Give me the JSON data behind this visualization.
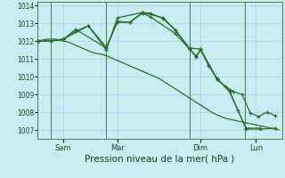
{
  "bg_color": "#c8ecf0",
  "grid_color": "#a8d4da",
  "line_color": "#2a6e2a",
  "xlabel": "Pression niveau de la mer( hPa )",
  "xlabel_fontsize": 7.5,
  "ylim": [
    1006.5,
    1014.2
  ],
  "yticks": [
    1007,
    1008,
    1009,
    1010,
    1011,
    1012,
    1013,
    1014
  ],
  "ytick_labels": [
    "1007",
    "1008",
    "1009",
    "1010",
    "1011",
    "1012",
    "1013",
    "1014"
  ],
  "xlim": [
    -0.05,
    8.8
  ],
  "xtick_labels": [
    "Sam",
    "Mar",
    "Dim",
    "Lun"
  ],
  "xtick_positions": [
    0.9,
    2.85,
    5.85,
    7.85
  ],
  "vline_positions": [
    0.45,
    2.45,
    5.45,
    7.45
  ],
  "series1_x": [
    0.0,
    0.15,
    0.3,
    0.45,
    0.6,
    0.75,
    0.9,
    1.05,
    1.2,
    1.35,
    1.5,
    1.65,
    1.8,
    1.95,
    2.1,
    2.25,
    2.4,
    2.55,
    2.7,
    2.85,
    3.0,
    3.15,
    3.3,
    3.45,
    3.6,
    3.75,
    3.9,
    4.05,
    4.2,
    4.35,
    4.5,
    4.65,
    4.8,
    4.95,
    5.1,
    5.25,
    5.4,
    5.55,
    5.7,
    5.85,
    6.0,
    6.15,
    6.3,
    6.45,
    6.6,
    6.75,
    6.9,
    7.05,
    7.2,
    7.35,
    7.5,
    7.65,
    7.8,
    7.95,
    8.1,
    8.25,
    8.4,
    8.55,
    8.7
  ],
  "series1_y": [
    1012.0,
    1012.05,
    1012.1,
    1012.1,
    1012.1,
    1012.05,
    1012.0,
    1011.95,
    1011.85,
    1011.75,
    1011.65,
    1011.55,
    1011.45,
    1011.35,
    1011.3,
    1011.25,
    1011.2,
    1011.1,
    1011.0,
    1010.9,
    1010.8,
    1010.7,
    1010.6,
    1010.5,
    1010.4,
    1010.3,
    1010.2,
    1010.1,
    1010.0,
    1009.9,
    1009.75,
    1009.6,
    1009.45,
    1009.3,
    1009.15,
    1009.0,
    1008.85,
    1008.7,
    1008.55,
    1008.4,
    1008.25,
    1008.1,
    1007.95,
    1007.85,
    1007.75,
    1007.65,
    1007.6,
    1007.55,
    1007.5,
    1007.45,
    1007.4,
    1007.35,
    1007.3,
    1007.25,
    1007.2,
    1007.15,
    1007.1,
    1007.05,
    1007.0
  ],
  "series2_x": [
    0.0,
    0.45,
    0.9,
    1.35,
    1.8,
    2.45,
    2.85,
    3.3,
    3.75,
    4.05,
    4.5,
    4.95,
    5.45,
    5.7,
    5.85,
    6.15,
    6.45,
    6.75,
    7.05,
    7.35,
    7.65,
    7.95,
    8.25,
    8.55
  ],
  "series2_y": [
    1012.0,
    1012.0,
    1012.1,
    1012.55,
    1012.85,
    1011.65,
    1013.05,
    1013.05,
    1013.6,
    1013.55,
    1013.25,
    1012.6,
    1011.55,
    1011.15,
    1011.5,
    1010.65,
    1009.85,
    1009.45,
    1009.15,
    1009.0,
    1007.95,
    1007.75,
    1008.0,
    1007.8
  ],
  "series3_x": [
    0.0,
    0.45,
    0.9,
    1.35,
    2.45,
    2.85,
    3.3,
    3.75,
    4.05,
    4.95,
    5.45,
    5.7,
    5.85,
    6.45,
    6.9,
    7.5,
    8.0,
    8.55
  ],
  "series3_y": [
    1012.0,
    1012.0,
    1012.1,
    1012.65,
    1011.6,
    1013.1,
    1013.05,
    1013.55,
    1013.35,
    1012.4,
    1011.55,
    1011.1,
    1011.55,
    1009.85,
    1009.2,
    1007.05,
    1007.05,
    1007.1
  ],
  "series4_x": [
    0.0,
    0.45,
    0.9,
    1.8,
    2.45,
    2.85,
    3.75,
    4.5,
    4.95,
    5.45,
    5.85,
    6.15,
    6.45,
    6.9,
    7.2,
    7.5,
    8.0
  ],
  "series4_y": [
    1012.0,
    1012.0,
    1012.1,
    1012.85,
    1011.5,
    1013.3,
    1013.6,
    1013.3,
    1012.6,
    1011.6,
    1011.55,
    1010.6,
    1009.9,
    1009.15,
    1008.1,
    1007.1,
    1007.1
  ]
}
